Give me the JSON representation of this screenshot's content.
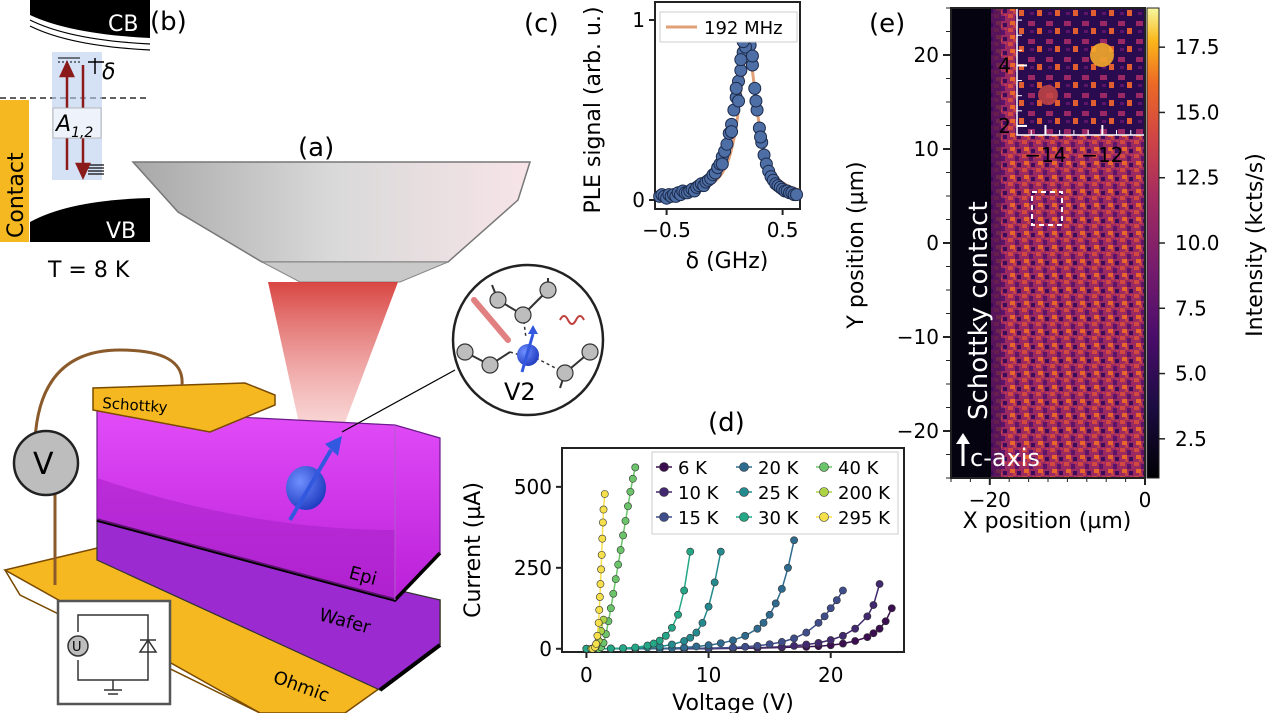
{
  "panel_labels": {
    "a": "(a)",
    "b": "(b)",
    "c": "(c)",
    "d": "(d)",
    "e": "(e)"
  },
  "band_diagram": {
    "cb": "CB",
    "vb": "VB",
    "contact": "Contact",
    "delta": "δ",
    "transition": "A",
    "transition_sub": "1,2",
    "temperature": "T = 8 K"
  },
  "device": {
    "schottky": "Schottky",
    "epi": "Epi",
    "wafer": "Wafer",
    "ohmic": "Ohmic",
    "voltmeter": "V",
    "source": "U",
    "defect": "V2"
  },
  "colors": {
    "magenta": "#d633f2",
    "gold": "#e3a21a",
    "blue": "#3358e0",
    "fit": "#e0a078",
    "marker": "#4e6fa6"
  },
  "chart_data": [
    {
      "id": "c",
      "type": "scatter",
      "title": "",
      "xlabel": "δ (GHz)",
      "ylabel": "PLE signal (arb. u.)",
      "xlim": [
        -0.6,
        0.65
      ],
      "ylim": [
        -0.05,
        1.1
      ],
      "xticks": [
        -0.5,
        0.5
      ],
      "xtick_labels": [
        "−0.5",
        "0.5"
      ],
      "yticks": [
        0,
        1
      ],
      "legend": [
        {
          "name": "192 MHz",
          "type": "line"
        }
      ],
      "legend_position": "top",
      "fit": {
        "center": 0.2,
        "fwhm": 0.192,
        "amplitude": 0.82,
        "offset": 0.02
      },
      "points": [
        [
          -0.56,
          0.02
        ],
        [
          -0.54,
          0.03
        ],
        [
          -0.52,
          0.02
        ],
        [
          -0.5,
          0.01
        ],
        [
          -0.48,
          0.03
        ],
        [
          -0.46,
          0.02
        ],
        [
          -0.44,
          0.03
        ],
        [
          -0.42,
          0.02
        ],
        [
          -0.4,
          0.04
        ],
        [
          -0.38,
          0.03
        ],
        [
          -0.36,
          0.05
        ],
        [
          -0.34,
          0.04
        ],
        [
          -0.32,
          0.04
        ],
        [
          -0.3,
          0.05
        ],
        [
          -0.28,
          0.06
        ],
        [
          -0.26,
          0.05
        ],
        [
          -0.24,
          0.07
        ],
        [
          -0.22,
          0.08
        ],
        [
          -0.2,
          0.09
        ],
        [
          -0.18,
          0.08
        ],
        [
          -0.16,
          0.1
        ],
        [
          -0.14,
          0.11
        ],
        [
          -0.12,
          0.12
        ],
        [
          -0.1,
          0.14
        ],
        [
          -0.08,
          0.15
        ],
        [
          -0.06,
          0.18
        ],
        [
          -0.04,
          0.2
        ],
        [
          -0.02,
          0.24
        ],
        [
          0.0,
          0.27
        ],
        [
          0.02,
          0.31
        ],
        [
          0.04,
          0.37
        ],
        [
          0.06,
          0.42
        ],
        [
          0.08,
          0.5
        ],
        [
          0.1,
          0.57
        ],
        [
          0.12,
          0.66
        ],
        [
          0.14,
          0.72
        ],
        [
          0.16,
          0.82
        ],
        [
          0.18,
          0.93
        ],
        [
          0.19,
          0.98
        ],
        [
          0.2,
          1.0
        ],
        [
          0.21,
          0.95
        ],
        [
          0.22,
          0.86
        ],
        [
          0.24,
          0.75
        ],
        [
          0.26,
          0.62
        ],
        [
          0.28,
          0.5
        ],
        [
          0.3,
          0.4
        ],
        [
          0.32,
          0.32
        ],
        [
          0.34,
          0.25
        ],
        [
          0.36,
          0.2
        ],
        [
          0.38,
          0.16
        ],
        [
          0.4,
          0.13
        ],
        [
          0.42,
          0.11
        ],
        [
          0.44,
          0.09
        ],
        [
          0.46,
          0.08
        ],
        [
          0.48,
          0.07
        ],
        [
          0.5,
          0.06
        ],
        [
          0.52,
          0.05
        ],
        [
          0.54,
          0.05
        ],
        [
          0.56,
          0.04
        ],
        [
          0.58,
          0.04
        ],
        [
          0.6,
          0.03
        ],
        [
          0.62,
          0.03
        ],
        [
          -0.02,
          0.2
        ],
        [
          0.06,
          0.38
        ],
        [
          0.1,
          0.62
        ],
        [
          0.14,
          0.78
        ],
        [
          0.18,
          0.85
        ],
        [
          0.24,
          0.8
        ],
        [
          0.27,
          0.55
        ],
        [
          0.31,
          0.35
        ],
        [
          0.12,
          0.55
        ],
        [
          0.16,
          0.88
        ]
      ]
    },
    {
      "id": "d",
      "type": "line",
      "title": "",
      "xlabel": "Voltage (V)",
      "ylabel": "Current (µA)",
      "xlim": [
        -2,
        26
      ],
      "ylim": [
        -10,
        620
      ],
      "xticks": [
        0,
        10,
        20
      ],
      "yticks": [
        0,
        250,
        500
      ],
      "legend_position": "top-right",
      "series": [
        {
          "name": "6 K",
          "color": "#3b0f4f",
          "x": [
            0,
            2,
            4,
            6,
            8,
            10,
            12,
            14,
            16,
            18,
            19,
            20,
            21,
            22,
            23,
            23.5,
            24,
            24.5,
            25
          ],
          "y": [
            0,
            0,
            0,
            0,
            0,
            0,
            1,
            2,
            4,
            6,
            8,
            11,
            16,
            24,
            36,
            48,
            62,
            85,
            125
          ]
        },
        {
          "name": "10 K",
          "color": "#42286e",
          "x": [
            0,
            2,
            4,
            6,
            8,
            10,
            12,
            14,
            16,
            17,
            18,
            19,
            20,
            21,
            22,
            23,
            23.5,
            24
          ],
          "y": [
            0,
            0,
            0,
            0,
            0,
            1,
            2,
            3,
            6,
            9,
            13,
            18,
            27,
            40,
            62,
            100,
            135,
            200
          ]
        },
        {
          "name": "15 K",
          "color": "#3f4d8a",
          "x": [
            0,
            2,
            4,
            6,
            8,
            10,
            12,
            13,
            14,
            15,
            16,
            17,
            18,
            19,
            19.5,
            20,
            20.5,
            21
          ],
          "y": [
            0,
            0,
            0,
            0,
            1,
            2,
            4,
            6,
            9,
            14,
            21,
            32,
            50,
            80,
            100,
            125,
            150,
            180
          ]
        },
        {
          "name": "20 K",
          "color": "#2f6b8e",
          "x": [
            0,
            2,
            4,
            6,
            7,
            8,
            9,
            10,
            11,
            12,
            13,
            14,
            14.5,
            15,
            15.5,
            16,
            16.5,
            17
          ],
          "y": [
            0,
            0,
            0,
            1,
            2,
            4,
            7,
            11,
            17,
            26,
            40,
            62,
            80,
            105,
            140,
            185,
            250,
            335
          ]
        },
        {
          "name": "25 K",
          "color": "#248a8d",
          "x": [
            0,
            1,
            2,
            3,
            4,
            5,
            6,
            7,
            8,
            8.5,
            9,
            9.5,
            10,
            10.5,
            11
          ],
          "y": [
            0,
            0,
            0,
            1,
            2,
            4,
            7,
            13,
            24,
            34,
            50,
            80,
            130,
            205,
            300
          ]
        },
        {
          "name": "30 K",
          "color": "#23a787",
          "x": [
            0,
            1,
            2,
            3,
            4,
            5,
            5.5,
            6,
            6.5,
            7,
            7.5,
            8,
            8.5
          ],
          "y": [
            0,
            0,
            1,
            2,
            4,
            10,
            16,
            25,
            40,
            65,
            105,
            180,
            300
          ]
        },
        {
          "name": "40 K",
          "color": "#6bc46a",
          "x": [
            1.0,
            1.2,
            1.4,
            1.6,
            1.8,
            2.0,
            2.2,
            2.4,
            2.6,
            2.8,
            3.0,
            3.2,
            3.4,
            3.6,
            3.8,
            4.0
          ],
          "y": [
            0,
            5,
            18,
            45,
            85,
            125,
            170,
            215,
            260,
            305,
            350,
            395,
            440,
            485,
            525,
            560
          ]
        },
        {
          "name": "200 K",
          "color": "#aed245",
          "x": [
            0.4,
            0.6,
            0.8,
            1.0,
            1.2,
            1.4
          ],
          "y": [
            0,
            2,
            8,
            25,
            55,
            90
          ]
        },
        {
          "name": "295 K",
          "color": "#f5e04b",
          "x": [
            0.5,
            0.7,
            0.8,
            0.9,
            1.0,
            1.05,
            1.1,
            1.15,
            1.2,
            1.25,
            1.3,
            1.35,
            1.4,
            1.5
          ],
          "y": [
            0,
            5,
            15,
            40,
            80,
            120,
            160,
            200,
            245,
            290,
            340,
            390,
            430,
            478
          ]
        }
      ]
    },
    {
      "id": "e",
      "type": "heatmap",
      "title": "",
      "xlabel": "X position (µm)",
      "ylabel": "Y position (µm)",
      "colorbar_label": "Intensity (kcts/s)",
      "xlim": [
        -25,
        0
      ],
      "ylim": [
        -25,
        25
      ],
      "xticks": [
        -20,
        0
      ],
      "yticks": [
        -20,
        -10,
        0,
        10,
        20
      ],
      "colorbar_ticks": [
        2.5,
        5.0,
        7.5,
        10.0,
        12.5,
        15.0,
        17.5
      ],
      "colorbar_range": [
        1.0,
        19.0
      ],
      "colorscale": "inferno",
      "contact_edge_x": -20,
      "annotations": [
        "Schottky contact",
        "c-axis"
      ],
      "inset": {
        "xticks": [
          -14,
          -12
        ],
        "yticks": [
          2,
          4
        ],
        "xtick_labels": [
          "−14",
          "−12"
        ],
        "yticks_labels": [
          "2",
          "4"
        ]
      }
    }
  ]
}
